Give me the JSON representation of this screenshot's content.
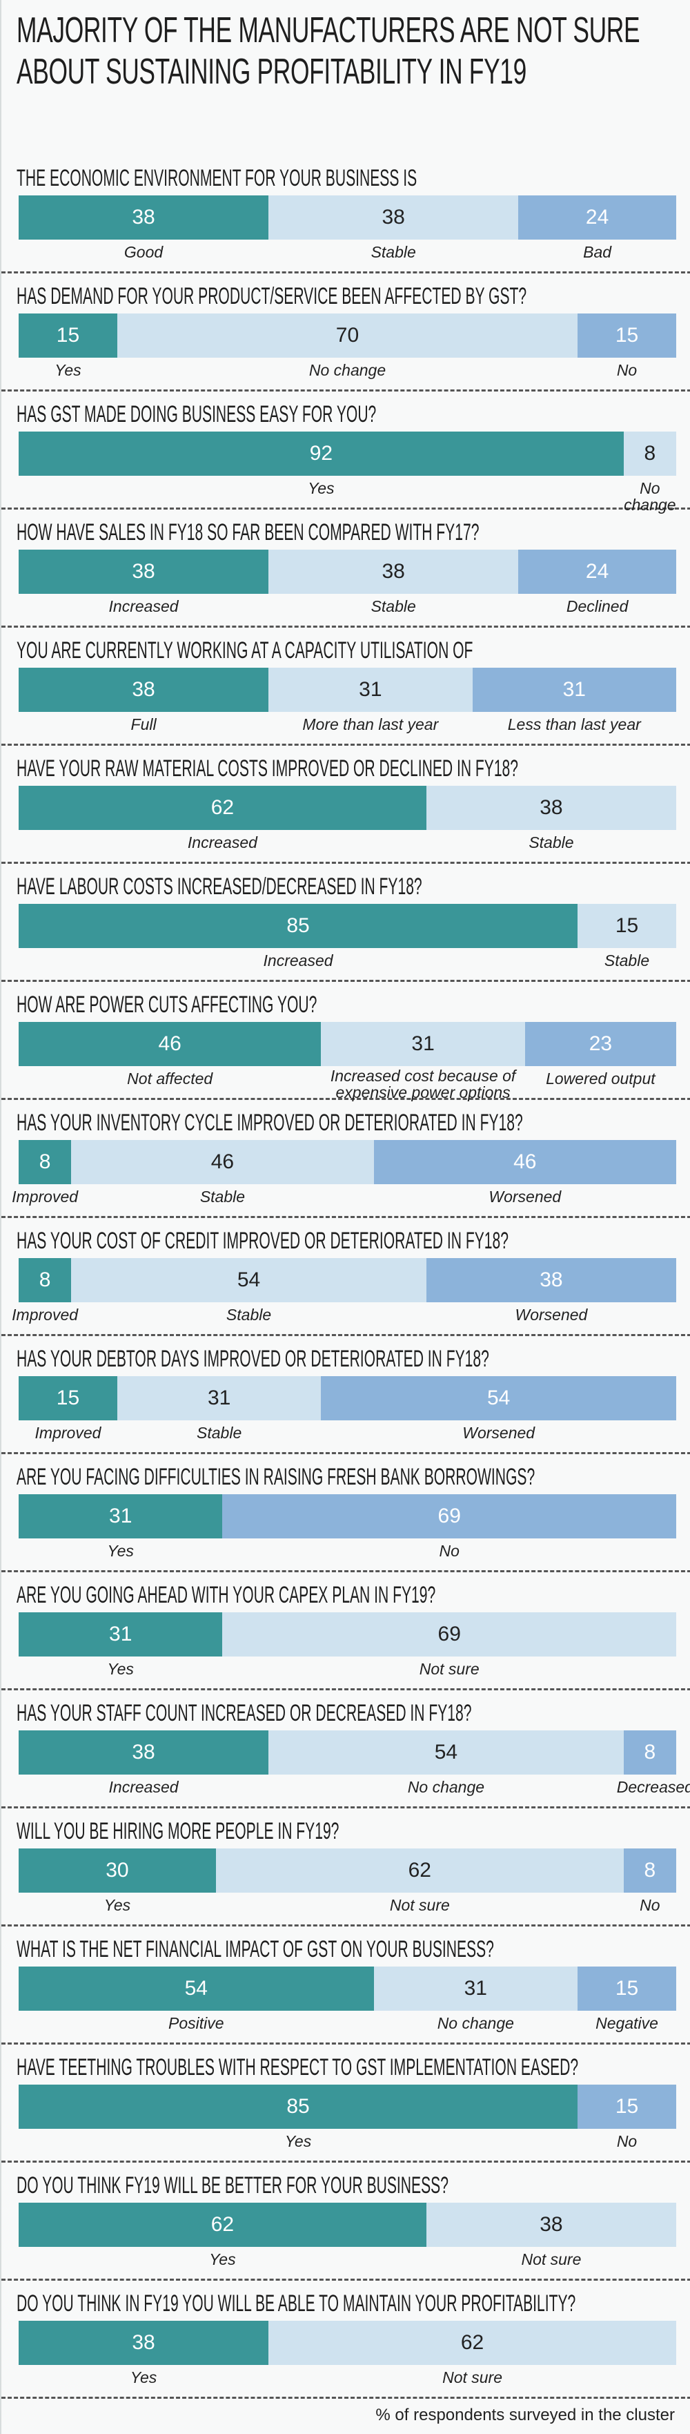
{
  "title": "MAJORITY OF THE MANUFACTURERS ARE NOT SURE ABOUT SUSTAINING PROFITABILITY IN FY19",
  "note": "% of respondents surveyed in the cluster",
  "chart_data": [
    {
      "type": "stacked-bar",
      "title": "THE ECONOMIC ENVIRONMENT FOR YOUR BUSINESS IS",
      "categories": [
        "Good",
        "Stable",
        "Bad"
      ],
      "values": [
        38,
        38,
        24
      ],
      "colors": [
        "#3a9698",
        "#cfe2ef",
        "#8cb3da"
      ]
    },
    {
      "type": "stacked-bar",
      "title": "HAS DEMAND FOR YOUR PRODUCT/SERVICE BEEN AFFECTED BY GST?",
      "categories": [
        "Yes",
        "No change",
        "No"
      ],
      "values": [
        15,
        70,
        15
      ],
      "colors": [
        "#3a9698",
        "#cfe2ef",
        "#8cb3da"
      ]
    },
    {
      "type": "stacked-bar",
      "title": "HAS GST MADE DOING BUSINESS EASY FOR YOU?",
      "categories": [
        "Yes",
        "No change"
      ],
      "values": [
        92,
        8
      ],
      "colors": [
        "#3a9698",
        "#cfe2ef"
      ]
    },
    {
      "type": "stacked-bar",
      "title": "HOW HAVE SALES IN FY18 SO FAR BEEN COMPARED WITH FY17?",
      "categories": [
        "Increased",
        "Stable",
        "Declined"
      ],
      "values": [
        38,
        38,
        24
      ],
      "colors": [
        "#3a9698",
        "#cfe2ef",
        "#8cb3da"
      ]
    },
    {
      "type": "stacked-bar",
      "title": "YOU ARE CURRENTLY WORKING AT A CAPACITY UTILISATION OF",
      "categories": [
        "Full",
        "More than last year",
        "Less than last year"
      ],
      "values": [
        38,
        31,
        31
      ],
      "colors": [
        "#3a9698",
        "#cfe2ef",
        "#8cb3da"
      ]
    },
    {
      "type": "stacked-bar",
      "title": "HAVE YOUR RAW MATERIAL COSTS IMPROVED OR DECLINED IN FY18?",
      "categories": [
        "Increased",
        "Stable"
      ],
      "values": [
        62,
        38
      ],
      "colors": [
        "#3a9698",
        "#cfe2ef"
      ]
    },
    {
      "type": "stacked-bar",
      "title": "HAVE LABOUR COSTS INCREASED/DECREASED IN FY18?",
      "categories": [
        "Increased",
        "Stable"
      ],
      "values": [
        85,
        15
      ],
      "colors": [
        "#3a9698",
        "#cfe2ef"
      ]
    },
    {
      "type": "stacked-bar",
      "title": "HOW ARE POWER CUTS AFFECTING YOU?",
      "categories": [
        "Not affected",
        "Increased cost because of expensive power options",
        "Lowered output"
      ],
      "values": [
        46,
        31,
        23
      ],
      "colors": [
        "#3a9698",
        "#cfe2ef",
        "#8cb3da"
      ]
    },
    {
      "type": "stacked-bar",
      "title": "HAS YOUR INVENTORY CYCLE IMPROVED OR DETERIORATED IN FY18?",
      "categories": [
        "Improved",
        "Stable",
        "Worsened"
      ],
      "values": [
        8,
        46,
        46
      ],
      "colors": [
        "#3a9698",
        "#cfe2ef",
        "#8cb3da"
      ]
    },
    {
      "type": "stacked-bar",
      "title": "HAS YOUR COST OF CREDIT IMPROVED OR DETERIORATED IN FY18?",
      "categories": [
        "Improved",
        "Stable",
        "Worsened"
      ],
      "values": [
        8,
        54,
        38
      ],
      "colors": [
        "#3a9698",
        "#cfe2ef",
        "#8cb3da"
      ]
    },
    {
      "type": "stacked-bar",
      "title": "HAS YOUR DEBTOR DAYS IMPROVED OR DETERIORATED IN FY18?",
      "categories": [
        "Improved",
        "Stable",
        "Worsened"
      ],
      "values": [
        15,
        31,
        54
      ],
      "colors": [
        "#3a9698",
        "#cfe2ef",
        "#8cb3da"
      ]
    },
    {
      "type": "stacked-bar",
      "title": "ARE YOU FACING DIFFICULTIES IN RAISING FRESH BANK BORROWINGS?",
      "categories": [
        "Yes",
        "No"
      ],
      "values": [
        31,
        69
      ],
      "colors": [
        "#3a9698",
        "#8cb3da"
      ]
    },
    {
      "type": "stacked-bar",
      "title": "ARE YOU GOING AHEAD WITH YOUR CAPEX PLAN IN FY19?",
      "categories": [
        "Yes",
        "Not sure"
      ],
      "values": [
        31,
        69
      ],
      "colors": [
        "#3a9698",
        "#cfe2ef"
      ]
    },
    {
      "type": "stacked-bar",
      "title": "HAS YOUR STAFF COUNT INCREASED OR DECREASED IN FY18?",
      "categories": [
        "Increased",
        "No change",
        "Decreased"
      ],
      "values": [
        38,
        54,
        8
      ],
      "colors": [
        "#3a9698",
        "#cfe2ef",
        "#8cb3da"
      ]
    },
    {
      "type": "stacked-bar",
      "title": "WILL YOU BE HIRING MORE PEOPLE IN FY19?",
      "categories": [
        "Yes",
        "Not sure",
        "No"
      ],
      "values": [
        30,
        62,
        8
      ],
      "colors": [
        "#3a9698",
        "#cfe2ef",
        "#8cb3da"
      ]
    },
    {
      "type": "stacked-bar",
      "title": "WHAT IS THE NET FINANCIAL IMPACT OF GST ON YOUR BUSINESS?",
      "categories": [
        "Positive",
        "No change",
        "Negative"
      ],
      "values": [
        54,
        31,
        15
      ],
      "colors": [
        "#3a9698",
        "#cfe2ef",
        "#8cb3da"
      ]
    },
    {
      "type": "stacked-bar",
      "title": "HAVE TEETHING TROUBLES WITH RESPECT TO GST IMPLEMENTATION EASED?",
      "categories": [
        "Yes",
        "No"
      ],
      "values": [
        85,
        15
      ],
      "colors": [
        "#3a9698",
        "#8cb3da"
      ]
    },
    {
      "type": "stacked-bar",
      "title": "DO YOU THINK FY19 WILL BE BETTER FOR YOUR BUSINESS?",
      "categories": [
        "Yes",
        "Not sure"
      ],
      "values": [
        62,
        38
      ],
      "colors": [
        "#3a9698",
        "#cfe2ef"
      ]
    },
    {
      "type": "stacked-bar",
      "title": "DO YOU THINK IN FY19 YOU WILL BE ABLE TO MAINTAIN YOUR PROFITABILITY?",
      "categories": [
        "Yes",
        "Not sure"
      ],
      "values": [
        38,
        62
      ],
      "colors": [
        "#3a9698",
        "#cfe2ef"
      ]
    }
  ]
}
